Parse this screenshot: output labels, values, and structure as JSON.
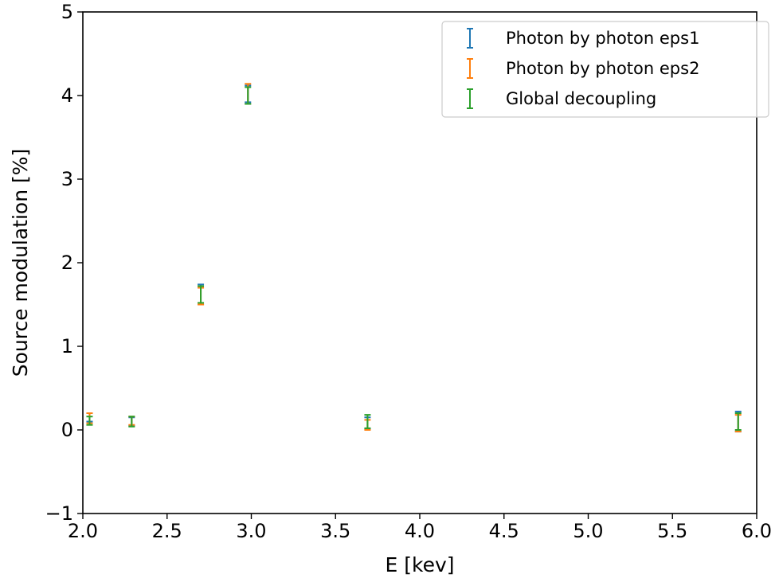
{
  "chart_data": {
    "type": "scatter",
    "style": "errorbar",
    "xlabel": "E [kev]",
    "ylabel": "Source modulation [%]",
    "xlim": [
      2.0,
      6.0
    ],
    "ylim": [
      -1,
      5
    ],
    "xticks": [
      "2.0",
      "2.5",
      "3.0",
      "3.5",
      "4.0",
      "4.5",
      "5.0",
      "5.5",
      "6.0"
    ],
    "yticks": [
      "−1",
      "0",
      "1",
      "2",
      "3",
      "4",
      "5"
    ],
    "grid": false,
    "legend_position": "top-right",
    "series": [
      {
        "name": "Photon by photon eps1",
        "color": "#1f77b4",
        "x": [
          2.04,
          2.29,
          2.7,
          2.98,
          3.69,
          5.89
        ],
        "y": [
          0.15,
          0.1,
          1.62,
          4.02,
          0.08,
          0.1
        ],
        "yerr": [
          0.05,
          0.05,
          0.12,
          0.1,
          0.07,
          0.12
        ]
      },
      {
        "name": "Photon by photon eps2",
        "color": "#ff7f0e",
        "x": [
          2.04,
          2.29,
          2.7,
          2.98,
          3.69,
          5.89
        ],
        "y": [
          0.14,
          0.11,
          1.6,
          4.02,
          0.06,
          0.08
        ],
        "yerr": [
          0.06,
          0.05,
          0.1,
          0.12,
          0.06,
          0.1
        ]
      },
      {
        "name": "Global decoupling",
        "color": "#2ca02c",
        "x": [
          2.04,
          2.29,
          2.7,
          2.98,
          3.69,
          5.89
        ],
        "y": [
          0.11,
          0.1,
          1.62,
          4.0,
          0.1,
          0.1
        ],
        "yerr": [
          0.05,
          0.06,
          0.1,
          0.1,
          0.08,
          0.1
        ]
      }
    ]
  }
}
